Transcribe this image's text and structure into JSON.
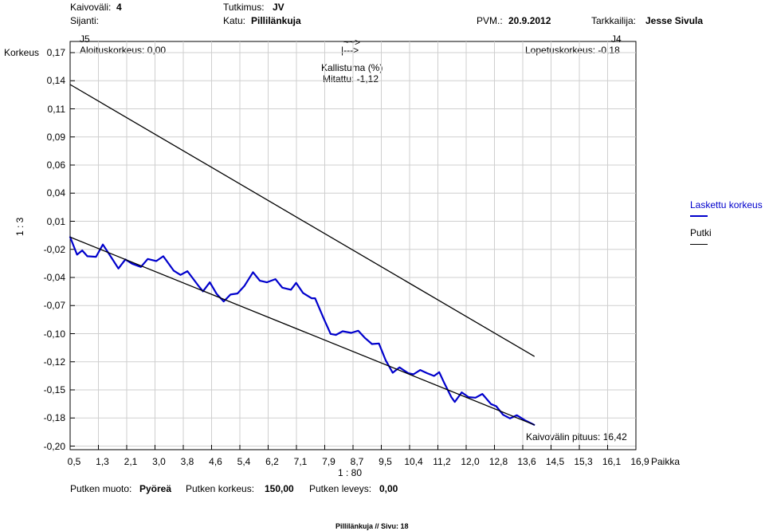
{
  "header": {
    "kaivovali_label": "Kaivoväli:",
    "kaivovali_value": "4",
    "tutkimus_label": "Tutkimus:",
    "tutkimus_value": "JV",
    "sijanti_label": "Sijanti:",
    "katu_label": "Katu:",
    "katu_value": "Pillilänkuja",
    "pvm_label": "PVM.:",
    "pvm_value": "20.9.2012",
    "tarkkailija_label": "Tarkkailija:",
    "tarkkailija_value": "Jesse Sivula"
  },
  "annotations": {
    "start_well": "J5",
    "start_height": "Aloituskorkeus: 0,00",
    "end_well": "J4",
    "end_height": "Lopetuskorkeus: -0,18",
    "arrow_top": "~~>",
    "arrow_bottom": "|--->",
    "slope_label": "Kallistuma (%)",
    "slope_measured": "Mitattu: -1,12",
    "well_length": "Kaivovälin pituus: 16,42",
    "y_scale": "1 : 3",
    "x_scale": "1 : 80"
  },
  "footer": {
    "muoto_label": "Putken muoto:",
    "muoto_value": "Pyöreä",
    "korkeus_label": "Putken korkeus:",
    "korkeus_value": "150,00",
    "leveys_label": "Putken leveys:",
    "leveys_value": "0,00",
    "page_info": "Pillilänkuja  //  Sivu: 18"
  },
  "legend": {
    "computed": "Laskettu korkeus",
    "pipe": "Putki",
    "computed_color": "#0000cc",
    "pipe_color": "#000000"
  },
  "chart_data": {
    "type": "line",
    "ylabel": "Korkeus",
    "xlabel": "Paikka",
    "y_ticks": [
      "0,17",
      "0,14",
      "0,11",
      "0,09",
      "0,06",
      "0,04",
      "0,01",
      "-0,02",
      "-0,04",
      "-0,07",
      "-0,10",
      "-0,12",
      "-0,15",
      "-0,18",
      "-0,20"
    ],
    "x_ticks": [
      "0,5",
      "1,3",
      "2,1",
      "3,0",
      "3,8",
      "4,6",
      "5,4",
      "6,2",
      "7,1",
      "7,9",
      "8,7",
      "9,5",
      "10,4",
      "11,2",
      "12,0",
      "12,8",
      "13,6",
      "14,5",
      "15,3",
      "16,1",
      "16,9"
    ],
    "xlim": [
      0.5,
      16.9
    ],
    "ylim": [
      -0.2,
      0.17
    ],
    "grid": true,
    "series": [
      {
        "name": "Laskettu korkeus",
        "color": "#0000cc",
        "points": [
          [
            0.5,
            -0.0035
          ],
          [
            0.7,
            -0.02
          ],
          [
            0.85,
            -0.016
          ],
          [
            1.0,
            -0.0215
          ],
          [
            1.25,
            -0.022
          ],
          [
            1.45,
            -0.0105
          ],
          [
            1.7,
            -0.023
          ],
          [
            1.9,
            -0.033
          ],
          [
            2.1,
            -0.0245
          ],
          [
            2.3,
            -0.0285
          ],
          [
            2.55,
            -0.0315
          ],
          [
            2.75,
            -0.024
          ],
          [
            3.0,
            -0.026
          ],
          [
            3.2,
            -0.0215
          ],
          [
            3.5,
            -0.035
          ],
          [
            3.7,
            -0.039
          ],
          [
            3.9,
            -0.0355
          ],
          [
            4.2,
            -0.0485
          ],
          [
            4.35,
            -0.0545
          ],
          [
            4.55,
            -0.046
          ],
          [
            4.75,
            -0.057
          ],
          [
            4.95,
            -0.064
          ],
          [
            5.15,
            -0.0575
          ],
          [
            5.35,
            -0.0565
          ],
          [
            5.55,
            -0.0495
          ],
          [
            5.8,
            -0.0365
          ],
          [
            6.0,
            -0.0445
          ],
          [
            6.2,
            -0.046
          ],
          [
            6.45,
            -0.043
          ],
          [
            6.65,
            -0.051
          ],
          [
            6.9,
            -0.053
          ],
          [
            7.05,
            -0.0465
          ],
          [
            7.25,
            -0.056
          ],
          [
            7.5,
            -0.061
          ],
          [
            7.6,
            -0.061
          ],
          [
            7.85,
            -0.08
          ],
          [
            8.05,
            -0.0945
          ],
          [
            8.2,
            -0.0955
          ],
          [
            8.4,
            -0.092
          ],
          [
            8.65,
            -0.0935
          ],
          [
            8.85,
            -0.0915
          ],
          [
            9.05,
            -0.0985
          ],
          [
            9.25,
            -0.104
          ],
          [
            9.45,
            -0.1035
          ],
          [
            9.65,
            -0.1195
          ],
          [
            9.85,
            -0.131
          ],
          [
            10.05,
            -0.126
          ],
          [
            10.3,
            -0.1315
          ],
          [
            10.45,
            -0.1325
          ],
          [
            10.65,
            -0.1285
          ],
          [
            10.85,
            -0.1315
          ],
          [
            11.05,
            -0.134
          ],
          [
            11.2,
            -0.1305
          ],
          [
            11.35,
            -0.141
          ],
          [
            11.55,
            -0.154
          ],
          [
            11.65,
            -0.1585
          ],
          [
            11.85,
            -0.1495
          ],
          [
            12.05,
            -0.154
          ],
          [
            12.25,
            -0.1545
          ],
          [
            12.45,
            -0.151
          ],
          [
            12.7,
            -0.1605
          ],
          [
            12.85,
            -0.1625
          ],
          [
            13.05,
            -0.1705
          ],
          [
            13.25,
            -0.174
          ],
          [
            13.45,
            -0.171
          ],
          [
            13.7,
            -0.176
          ],
          [
            13.95,
            -0.18
          ]
        ]
      },
      {
        "name": "Putki",
        "color": "#000000",
        "points": [
          [
            0.5,
            0.14
          ],
          [
            13.95,
            -0.1155
          ]
        ]
      },
      {
        "name": "",
        "color": "#000000",
        "points": [
          [
            0.5,
            -0.0035
          ],
          [
            13.95,
            -0.18
          ]
        ]
      }
    ]
  }
}
